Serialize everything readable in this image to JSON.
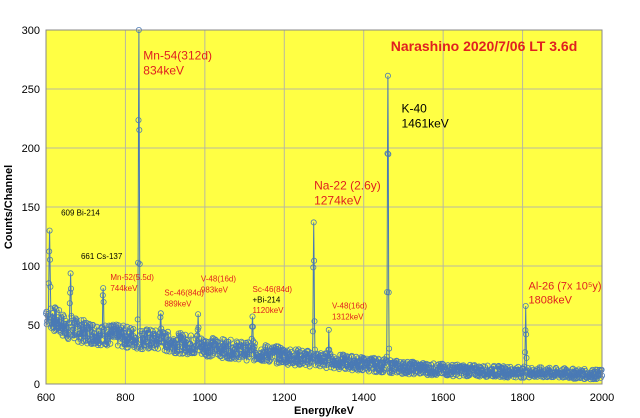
{
  "chart_data": {
    "type": "line",
    "title": "Narashino 2020/7/06 LT 3.6d",
    "xlabel": "Energy/keV",
    "ylabel": "Counts/Channel",
    "xlim": [
      600,
      2000
    ],
    "ylim": [
      0,
      300
    ],
    "x_ticks": [
      600,
      800,
      1000,
      1200,
      1400,
      1600,
      1800,
      2000
    ],
    "y_ticks": [
      0,
      50,
      100,
      150,
      200,
      250,
      300
    ],
    "grid": true,
    "colors": {
      "plot_background": "#ffff44",
      "series": "#4a7ab5",
      "grid": "#b8b8a0",
      "annotation_red": "#e02020",
      "annotation_black": "#000000"
    },
    "series": [
      {
        "marker": "open-circle",
        "baseline": [
          [
            600,
            60
          ],
          [
            650,
            48
          ],
          [
            700,
            44
          ],
          [
            800,
            40
          ],
          [
            900,
            36
          ],
          [
            1000,
            32
          ],
          [
            1100,
            28
          ],
          [
            1200,
            24
          ],
          [
            1300,
            20
          ],
          [
            1400,
            17
          ],
          [
            1500,
            14
          ],
          [
            1600,
            12
          ],
          [
            1700,
            11
          ],
          [
            1800,
            10
          ],
          [
            1900,
            9
          ],
          [
            2000,
            8
          ]
        ],
        "peaks": [
          {
            "x": 609,
            "y": 132
          },
          {
            "x": 662,
            "y": 95
          },
          {
            "x": 744,
            "y": 77
          },
          {
            "x": 834,
            "y": 299
          },
          {
            "x": 889,
            "y": 62
          },
          {
            "x": 983,
            "y": 55
          },
          {
            "x": 1120,
            "y": 52
          },
          {
            "x": 1274,
            "y": 135
          },
          {
            "x": 1312,
            "y": 42
          },
          {
            "x": 1461,
            "y": 262
          },
          {
            "x": 1808,
            "y": 62
          }
        ]
      }
    ],
    "annotations": [
      {
        "lines": [
          "Mn-54(312d)",
          "834keV"
        ],
        "x": 845,
        "y": 275,
        "size": 12,
        "color": "red"
      },
      {
        "lines": [
          "K-40",
          "1461keV"
        ],
        "x": 1495,
        "y": 230,
        "size": 12,
        "color": "black"
      },
      {
        "lines": [
          "Na-22 (2.6y)",
          "1274keV"
        ],
        "x": 1275,
        "y": 165,
        "size": 12,
        "color": "red"
      },
      {
        "lines": [
          "Al-26 (7x 10⁵y)",
          "1808keV"
        ],
        "x": 1815,
        "y": 80,
        "size": 11,
        "color": "red"
      },
      {
        "lines": [
          "609 Bi-214"
        ],
        "x": 638,
        "y": 143,
        "size": 8,
        "color": "black"
      },
      {
        "lines": [
          "661 Cs-137"
        ],
        "x": 688,
        "y": 106,
        "size": 8,
        "color": "black"
      },
      {
        "lines": [
          "Mn-52(5.5d)",
          "744keV"
        ],
        "x": 762,
        "y": 88,
        "size": 8,
        "color": "red"
      },
      {
        "lines": [
          "Sc-46(84d)",
          "889keV"
        ],
        "x": 898,
        "y": 75,
        "size": 8,
        "color": "red"
      },
      {
        "lines": [
          "V-48(16d)",
          "983keV"
        ],
        "x": 990,
        "y": 87,
        "size": 8,
        "color": "red"
      },
      {
        "lines": [
          "Sc-46(84d)"
        ],
        "x": 1120,
        "y": 78,
        "size": 8,
        "color": "red"
      },
      {
        "lines": [
          "+Bi-214"
        ],
        "x": 1120,
        "y": 69,
        "size": 8,
        "color": "black"
      },
      {
        "lines": [
          "1120keV"
        ],
        "x": 1120,
        "y": 60,
        "size": 8,
        "color": "red"
      },
      {
        "lines": [
          "V-48(16d)",
          "1312keV"
        ],
        "x": 1320,
        "y": 64,
        "size": 8,
        "color": "red"
      }
    ]
  }
}
